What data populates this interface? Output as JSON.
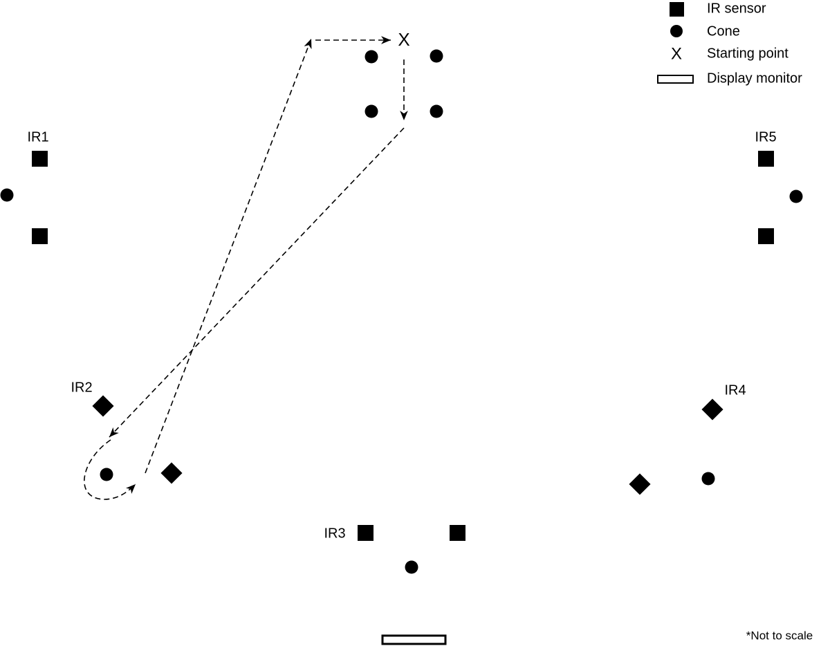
{
  "legend": [
    {
      "label": "IR sensor"
    },
    {
      "label": "Cone"
    },
    {
      "symbol": "X",
      "label": "Starting point"
    },
    {
      "label": "Display monitor"
    }
  ],
  "start_marker": "X",
  "sensors": [
    {
      "label": "IR1"
    },
    {
      "label": "IR2"
    },
    {
      "label": "IR3"
    },
    {
      "label": "IR4"
    },
    {
      "label": "IR5"
    }
  ],
  "note": "*Not to scale"
}
